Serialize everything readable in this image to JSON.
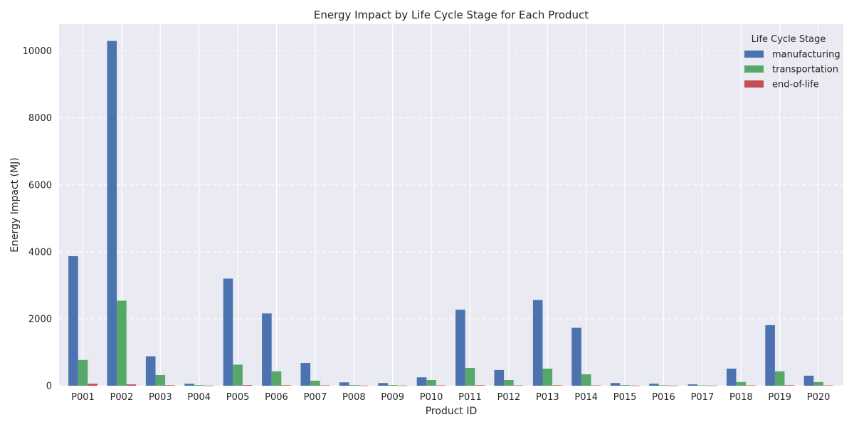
{
  "chart_data": {
    "type": "bar",
    "title": "Energy Impact by Life Cycle Stage for Each Product",
    "xlabel": "Product ID",
    "ylabel": "Energy Impact (MJ)",
    "ylim": [
      0,
      10800
    ],
    "yticks": [
      0,
      2000,
      4000,
      6000,
      8000,
      10000
    ],
    "grid": true,
    "legend": {
      "title": "Life Cycle Stage",
      "position": "top-right"
    },
    "categories": [
      "P001",
      "P002",
      "P003",
      "P004",
      "P005",
      "P006",
      "P007",
      "P008",
      "P009",
      "P010",
      "P011",
      "P012",
      "P013",
      "P014",
      "P015",
      "P016",
      "P017",
      "P018",
      "P019",
      "P020"
    ],
    "series": [
      {
        "name": "manufacturing",
        "color": "#4c72b0",
        "values": [
          3870,
          10300,
          880,
          60,
          3200,
          2160,
          680,
          100,
          80,
          250,
          2270,
          470,
          2560,
          1730,
          80,
          60,
          40,
          510,
          1810,
          300
        ]
      },
      {
        "name": "transportation",
        "color": "#55a868",
        "values": [
          770,
          2540,
          320,
          20,
          630,
          430,
          150,
          20,
          20,
          170,
          530,
          170,
          510,
          340,
          20,
          15,
          10,
          110,
          430,
          110
        ]
      },
      {
        "name": "end-of-life",
        "color": "#c44e52",
        "values": [
          60,
          40,
          15,
          5,
          20,
          15,
          10,
          5,
          5,
          10,
          15,
          10,
          15,
          10,
          5,
          5,
          5,
          10,
          15,
          10
        ]
      }
    ]
  }
}
